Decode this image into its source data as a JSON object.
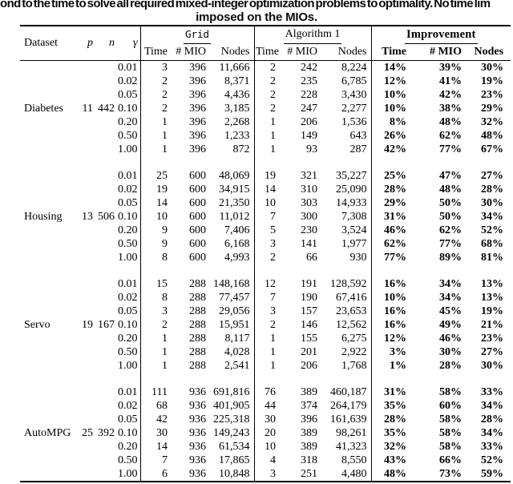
{
  "caption": {
    "line1_clipped": "ond to the time to solve all required mixed-integer optimization problems to optimality. No time lim",
    "line2": "imposed on the MIOs."
  },
  "colors": {
    "text": "#000000",
    "background": "#ffffff",
    "rule": "#000000"
  },
  "table": {
    "headers": {
      "dataset": "Dataset",
      "p": "p",
      "n": "n",
      "gamma": "γ",
      "groups": [
        {
          "label": "Grid"
        },
        {
          "label": "Algorithm 1"
        },
        {
          "label": "Improvement"
        }
      ],
      "sub": [
        "Time",
        "# MIO",
        "Nodes"
      ]
    },
    "datasets": [
      {
        "name": "Diabetes",
        "p": "11",
        "n": "442",
        "rows": [
          {
            "gamma": "0.01",
            "grid": [
              "3",
              "396",
              "11,666"
            ],
            "algorithm1": [
              "2",
              "242",
              "8,224"
            ],
            "improvement": [
              "14%",
              "39%",
              "30%"
            ]
          },
          {
            "gamma": "0.02",
            "grid": [
              "2",
              "396",
              "8,371"
            ],
            "algorithm1": [
              "2",
              "235",
              "6,785"
            ],
            "improvement": [
              "12%",
              "41%",
              "19%"
            ]
          },
          {
            "gamma": "0.05",
            "grid": [
              "2",
              "396",
              "4,436"
            ],
            "algorithm1": [
              "2",
              "228",
              "3,430"
            ],
            "improvement": [
              "10%",
              "42%",
              "23%"
            ]
          },
          {
            "gamma": "0.10",
            "grid": [
              "2",
              "396",
              "3,185"
            ],
            "algorithm1": [
              "2",
              "247",
              "2,277"
            ],
            "improvement": [
              "10%",
              "38%",
              "29%"
            ]
          },
          {
            "gamma": "0.20",
            "grid": [
              "1",
              "396",
              "2,268"
            ],
            "algorithm1": [
              "1",
              "206",
              "1,536"
            ],
            "improvement": [
              "8%",
              "48%",
              "32%"
            ]
          },
          {
            "gamma": "0.50",
            "grid": [
              "1",
              "396",
              "1,233"
            ],
            "algorithm1": [
              "1",
              "149",
              "643"
            ],
            "improvement": [
              "26%",
              "62%",
              "48%"
            ]
          },
          {
            "gamma": "1.00",
            "grid": [
              "1",
              "396",
              "872"
            ],
            "algorithm1": [
              "1",
              "93",
              "287"
            ],
            "improvement": [
              "42%",
              "77%",
              "67%"
            ]
          }
        ]
      },
      {
        "name": "Housing",
        "p": "13",
        "n": "506",
        "rows": [
          {
            "gamma": "0.01",
            "grid": [
              "25",
              "600",
              "48,069"
            ],
            "algorithm1": [
              "19",
              "321",
              "35,227"
            ],
            "improvement": [
              "25%",
              "47%",
              "27%"
            ]
          },
          {
            "gamma": "0.02",
            "grid": [
              "19",
              "600",
              "34,915"
            ],
            "algorithm1": [
              "14",
              "310",
              "25,090"
            ],
            "improvement": [
              "28%",
              "48%",
              "28%"
            ]
          },
          {
            "gamma": "0.05",
            "grid": [
              "14",
              "600",
              "21,350"
            ],
            "algorithm1": [
              "10",
              "303",
              "14,933"
            ],
            "improvement": [
              "29%",
              "50%",
              "30%"
            ]
          },
          {
            "gamma": "0.10",
            "grid": [
              "10",
              "600",
              "11,012"
            ],
            "algorithm1": [
              "7",
              "300",
              "7,308"
            ],
            "improvement": [
              "31%",
              "50%",
              "34%"
            ]
          },
          {
            "gamma": "0.20",
            "grid": [
              "9",
              "600",
              "7,406"
            ],
            "algorithm1": [
              "5",
              "230",
              "3,524"
            ],
            "improvement": [
              "46%",
              "62%",
              "52%"
            ]
          },
          {
            "gamma": "0.50",
            "grid": [
              "9",
              "600",
              "6,168"
            ],
            "algorithm1": [
              "3",
              "141",
              "1,977"
            ],
            "improvement": [
              "62%",
              "77%",
              "68%"
            ]
          },
          {
            "gamma": "1.00",
            "grid": [
              "8",
              "600",
              "4,993"
            ],
            "algorithm1": [
              "2",
              "66",
              "930"
            ],
            "improvement": [
              "77%",
              "89%",
              "81%"
            ]
          }
        ]
      },
      {
        "name": "Servo",
        "p": "19",
        "n": "167",
        "rows": [
          {
            "gamma": "0.01",
            "grid": [
              "15",
              "288",
              "148,168"
            ],
            "algorithm1": [
              "12",
              "191",
              "128,592"
            ],
            "improvement": [
              "16%",
              "34%",
              "13%"
            ]
          },
          {
            "gamma": "0.02",
            "grid": [
              "8",
              "288",
              "77,457"
            ],
            "algorithm1": [
              "7",
              "190",
              "67,416"
            ],
            "improvement": [
              "10%",
              "34%",
              "13%"
            ]
          },
          {
            "gamma": "0.05",
            "grid": [
              "3",
              "288",
              "29,056"
            ],
            "algorithm1": [
              "3",
              "157",
              "23,653"
            ],
            "improvement": [
              "16%",
              "45%",
              "19%"
            ]
          },
          {
            "gamma": "0.10",
            "grid": [
              "2",
              "288",
              "15,951"
            ],
            "algorithm1": [
              "2",
              "146",
              "12,562"
            ],
            "improvement": [
              "16%",
              "49%",
              "21%"
            ]
          },
          {
            "gamma": "0.20",
            "grid": [
              "1",
              "288",
              "8,117"
            ],
            "algorithm1": [
              "1",
              "155",
              "6,275"
            ],
            "improvement": [
              "12%",
              "46%",
              "23%"
            ]
          },
          {
            "gamma": "0.50",
            "grid": [
              "1",
              "288",
              "4,028"
            ],
            "algorithm1": [
              "1",
              "201",
              "2,922"
            ],
            "improvement": [
              "3%",
              "30%",
              "27%"
            ]
          },
          {
            "gamma": "1.00",
            "grid": [
              "1",
              "288",
              "2,541"
            ],
            "algorithm1": [
              "1",
              "206",
              "1,768"
            ],
            "improvement": [
              "1%",
              "28%",
              "30%"
            ]
          }
        ]
      },
      {
        "name": "AutoMPG",
        "p": "25",
        "n": "392",
        "rows": [
          {
            "gamma": "0.01",
            "grid": [
              "111",
              "936",
              "691,816"
            ],
            "algorithm1": [
              "76",
              "389",
              "460,187"
            ],
            "improvement": [
              "31%",
              "58%",
              "33%"
            ]
          },
          {
            "gamma": "0.02",
            "grid": [
              "68",
              "936",
              "401,905"
            ],
            "algorithm1": [
              "44",
              "374",
              "264,179"
            ],
            "improvement": [
              "35%",
              "60%",
              "34%"
            ]
          },
          {
            "gamma": "0.05",
            "grid": [
              "42",
              "936",
              "225,318"
            ],
            "algorithm1": [
              "30",
              "396",
              "161,639"
            ],
            "improvement": [
              "28%",
              "58%",
              "28%"
            ]
          },
          {
            "gamma": "0.10",
            "grid": [
              "30",
              "936",
              "149,243"
            ],
            "algorithm1": [
              "20",
              "389",
              "98,261"
            ],
            "improvement": [
              "35%",
              "58%",
              "34%"
            ]
          },
          {
            "gamma": "0.20",
            "grid": [
              "14",
              "936",
              "61,534"
            ],
            "algorithm1": [
              "10",
              "389",
              "41,323"
            ],
            "improvement": [
              "32%",
              "58%",
              "33%"
            ]
          },
          {
            "gamma": "0.50",
            "grid": [
              "7",
              "936",
              "17,865"
            ],
            "algorithm1": [
              "4",
              "318",
              "8,550"
            ],
            "improvement": [
              "43%",
              "66%",
              "52%"
            ]
          },
          {
            "gamma": "1.00",
            "grid": [
              "6",
              "936",
              "10,848"
            ],
            "algorithm1": [
              "3",
              "251",
              "4,480"
            ],
            "improvement": [
              "48%",
              "73%",
              "59%"
            ]
          }
        ]
      }
    ]
  }
}
